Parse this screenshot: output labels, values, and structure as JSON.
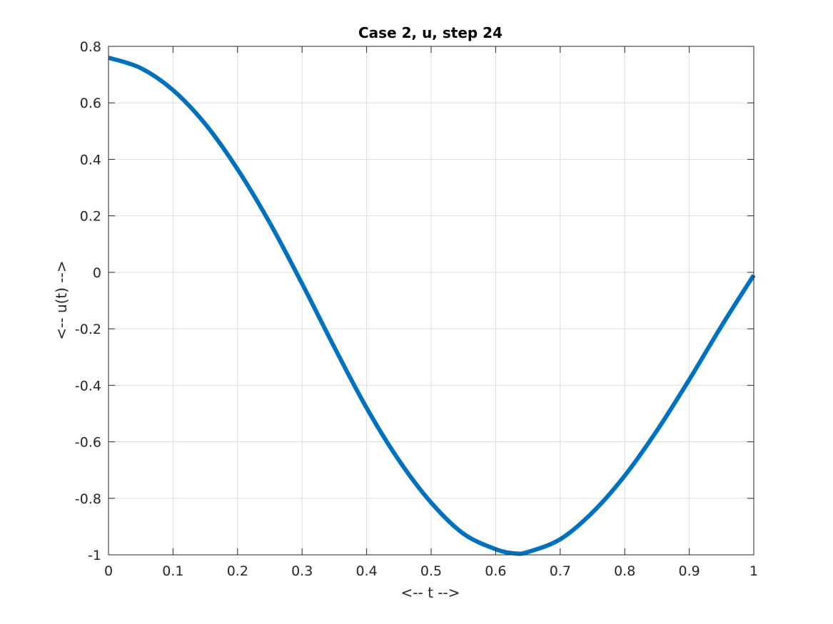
{
  "chart_data": {
    "type": "line",
    "title": "Case 2, u, step 24",
    "xlabel": "<-- t -->",
    "ylabel": "<-- u(t) -->",
    "xlim": [
      0,
      1
    ],
    "ylim": [
      -1,
      0.8
    ],
    "xticks": [
      0,
      0.1,
      0.2,
      0.3,
      0.4,
      0.5,
      0.6,
      0.7,
      0.8,
      0.9,
      1
    ],
    "xtick_labels": [
      "0",
      "0.1",
      "0.2",
      "0.3",
      "0.4",
      "0.5",
      "0.6",
      "0.7",
      "0.8",
      "0.9",
      "1"
    ],
    "yticks": [
      -1,
      -0.8,
      -0.6,
      -0.4,
      -0.2,
      0,
      0.2,
      0.4,
      0.6,
      0.8
    ],
    "ytick_labels": [
      "-1",
      "-0.8",
      "-0.6",
      "-0.4",
      "-0.2",
      "0",
      "0.2",
      "0.4",
      "0.6",
      "0.8"
    ],
    "grid": true,
    "series": [
      {
        "color": "#0072bd",
        "x": [
          0,
          0.05,
          0.1,
          0.15,
          0.2,
          0.25,
          0.3,
          0.35,
          0.4,
          0.45,
          0.5,
          0.55,
          0.6,
          0.63,
          0.65,
          0.7,
          0.75,
          0.8,
          0.85,
          0.9,
          0.95,
          1
        ],
        "y": [
          0.76,
          0.723,
          0.645,
          0.525,
          0.365,
          0.175,
          -0.04,
          -0.265,
          -0.48,
          -0.665,
          -0.815,
          -0.925,
          -0.98,
          -0.995,
          -0.99,
          -0.945,
          -0.85,
          -0.72,
          -0.56,
          -0.38,
          -0.19,
          -0.01
        ]
      }
    ]
  }
}
